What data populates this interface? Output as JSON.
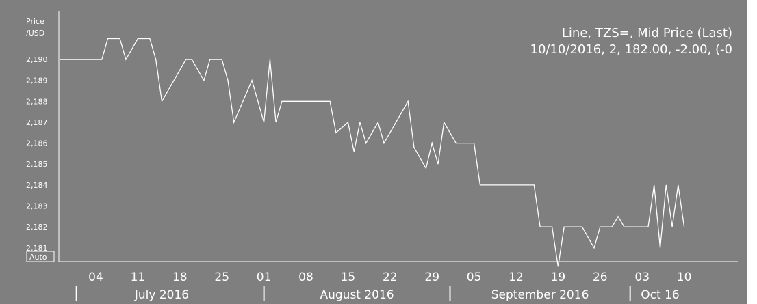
{
  "chart_data": {
    "type": "line",
    "ylabel": "Price\n/USD",
    "y_ticks": [
      "2,181",
      "2,182",
      "2,183",
      "2,184",
      "2,185",
      "2,186",
      "2,187",
      "2,188",
      "2,189",
      "2,190"
    ],
    "ylim": [
      2180.3,
      2191.7
    ],
    "x_ticks": [
      "04",
      "11",
      "18",
      "25",
      "01",
      "08",
      "15",
      "22",
      "29",
      "05",
      "12",
      "19",
      "26",
      "03",
      "10"
    ],
    "x_tick_dates": [
      "2016-07-04",
      "2016-07-11",
      "2016-07-18",
      "2016-07-25",
      "2016-08-01",
      "2016-08-08",
      "2016-08-15",
      "2016-08-22",
      "2016-08-29",
      "2016-09-05",
      "2016-09-12",
      "2016-09-19",
      "2016-09-26",
      "2016-10-03",
      "2016-10-10"
    ],
    "months": [
      {
        "label": "July 2016",
        "start": "2016-06-28",
        "end": "2016-07-31"
      },
      {
        "label": "August 2016",
        "start": "2016-08-01",
        "end": "2016-08-31"
      },
      {
        "label": "September 2016",
        "start": "2016-09-01",
        "end": "2016-09-30"
      },
      {
        "label": "Oct 16",
        "start": "2016-10-01",
        "end": "2016-10-10"
      }
    ],
    "legend": [
      "Line, TZS=, Mid Price (Last)",
      "10/10/2016, 2, 182.00, -2.00, (-0"
    ],
    "legend_position": "top-right",
    "grid": false,
    "auto_label": "Auto",
    "colors": {
      "background": "#7f7f7f",
      "line": "#ffffff"
    },
    "series": [
      {
        "points": [
          [
            "2016-06-28",
            2190.0
          ],
          [
            "2016-07-05",
            2190.0
          ],
          [
            "2016-07-06",
            2191.0
          ],
          [
            "2016-07-08",
            2191.0
          ],
          [
            "2016-07-09",
            2190.0
          ],
          [
            "2016-07-11",
            2191.0
          ],
          [
            "2016-07-13",
            2191.0
          ],
          [
            "2016-07-14",
            2190.0
          ],
          [
            "2016-07-15",
            2188.0
          ],
          [
            "2016-07-19",
            2190.0
          ],
          [
            "2016-07-20",
            2190.0
          ],
          [
            "2016-07-22",
            2189.0
          ],
          [
            "2016-07-23",
            2190.0
          ],
          [
            "2016-07-25",
            2190.0
          ],
          [
            "2016-07-26",
            2189.0
          ],
          [
            "2016-07-27",
            2187.0
          ],
          [
            "2016-07-30",
            2189.0
          ],
          [
            "2016-08-01",
            2187.0
          ],
          [
            "2016-08-02",
            2190.0
          ],
          [
            "2016-08-03",
            2187.0
          ],
          [
            "2016-08-04",
            2188.0
          ],
          [
            "2016-08-12",
            2188.0
          ],
          [
            "2016-08-13",
            2186.5
          ],
          [
            "2016-08-15",
            2187.0
          ],
          [
            "2016-08-16",
            2185.6
          ],
          [
            "2016-08-17",
            2187.0
          ],
          [
            "2016-08-18",
            2186.0
          ],
          [
            "2016-08-20",
            2187.0
          ],
          [
            "2016-08-21",
            2186.0
          ],
          [
            "2016-08-25",
            2188.0
          ],
          [
            "2016-08-26",
            2185.8
          ],
          [
            "2016-08-28",
            2184.8
          ],
          [
            "2016-08-29",
            2186.0
          ],
          [
            "2016-08-30",
            2185.0
          ],
          [
            "2016-08-31",
            2187.0
          ],
          [
            "2016-09-02",
            2186.0
          ],
          [
            "2016-09-05",
            2186.0
          ],
          [
            "2016-09-06",
            2184.0
          ],
          [
            "2016-09-15",
            2184.0
          ],
          [
            "2016-09-16",
            2182.0
          ],
          [
            "2016-09-18",
            2182.0
          ],
          [
            "2016-09-19",
            2180.1
          ],
          [
            "2016-09-20",
            2182.0
          ],
          [
            "2016-09-23",
            2182.0
          ],
          [
            "2016-09-25",
            2181.0
          ],
          [
            "2016-09-26",
            2182.0
          ],
          [
            "2016-09-28",
            2182.0
          ],
          [
            "2016-09-29",
            2182.5
          ],
          [
            "2016-09-30",
            2182.0
          ],
          [
            "2016-10-04",
            2182.0
          ],
          [
            "2016-10-05",
            2184.0
          ],
          [
            "2016-10-06",
            2181.0
          ],
          [
            "2016-10-07",
            2184.0
          ],
          [
            "2016-10-08",
            2182.0
          ],
          [
            "2016-10-09",
            2184.0
          ],
          [
            "2016-10-10",
            2182.0
          ]
        ]
      }
    ]
  }
}
